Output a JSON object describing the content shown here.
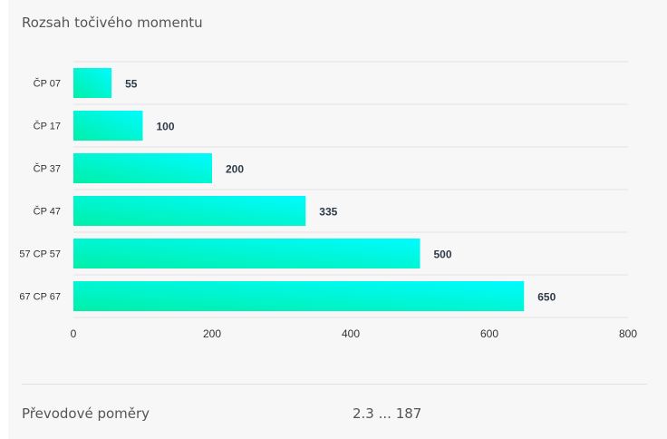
{
  "title": "Rozsah točivého momentu",
  "spec": {
    "label": "Převodové poměry",
    "value": "2.3 ... 187"
  },
  "colors": {
    "bar_start": "#00f0a8",
    "bar_end": "#00fbff",
    "grid": "#e3e3e3",
    "label": "#333333",
    "value_label": "#2f3b4a"
  },
  "chart_data": {
    "type": "bar",
    "orientation": "horizontal",
    "title": "",
    "xlabel": "",
    "ylabel": "",
    "categories": [
      "ČP 07",
      "ČP 17",
      "ČP 37",
      "ČP 47",
      "57 CP 57",
      "67 CP 67"
    ],
    "values": [
      55,
      100,
      200,
      335,
      500,
      650
    ],
    "xlim": [
      0,
      800
    ],
    "xticks": [
      0,
      200,
      400,
      600,
      800
    ],
    "grid": true,
    "data_labels": true
  }
}
